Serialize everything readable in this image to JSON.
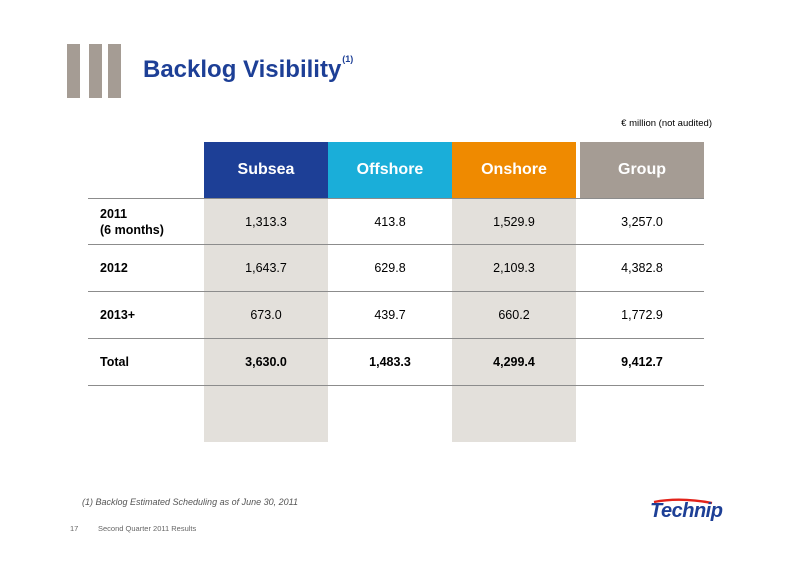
{
  "slide": {
    "title": "Backlog Visibility",
    "title_sup": "(1)",
    "units": "€ million (not audited)",
    "footnote": "(1) Backlog Estimated Scheduling as of June 30, 2011",
    "page_number": "17",
    "footer_text": "Second Quarter 2011 Results",
    "logo_text": "Technip"
  },
  "colors": {
    "title": "#1d3f96",
    "subsea": "#1d3f96",
    "offshore": "#1aaed9",
    "onshore": "#ef8a00",
    "group": "#a59c94",
    "cell_bg": "#e3e0db"
  },
  "table": {
    "headers": [
      "Subsea",
      "Offshore",
      "Onshore",
      "Group"
    ],
    "rows": [
      {
        "label_line1": "2011",
        "label_line2": "(6 months)",
        "values": [
          "1,313.3",
          "413.8",
          "1,529.9",
          "3,257.0"
        ]
      },
      {
        "label_line1": "2012",
        "label_line2": "",
        "values": [
          "1,643.7",
          "629.8",
          "2,109.3",
          "4,382.8"
        ]
      },
      {
        "label_line1": "2013+",
        "label_line2": "",
        "values": [
          "673.0",
          "439.7",
          "660.2",
          "1,772.9"
        ]
      },
      {
        "label_line1": "Total",
        "label_line2": "",
        "values": [
          "3,630.0",
          "1,483.3",
          "4,299.4",
          "9,412.7"
        ]
      }
    ]
  }
}
